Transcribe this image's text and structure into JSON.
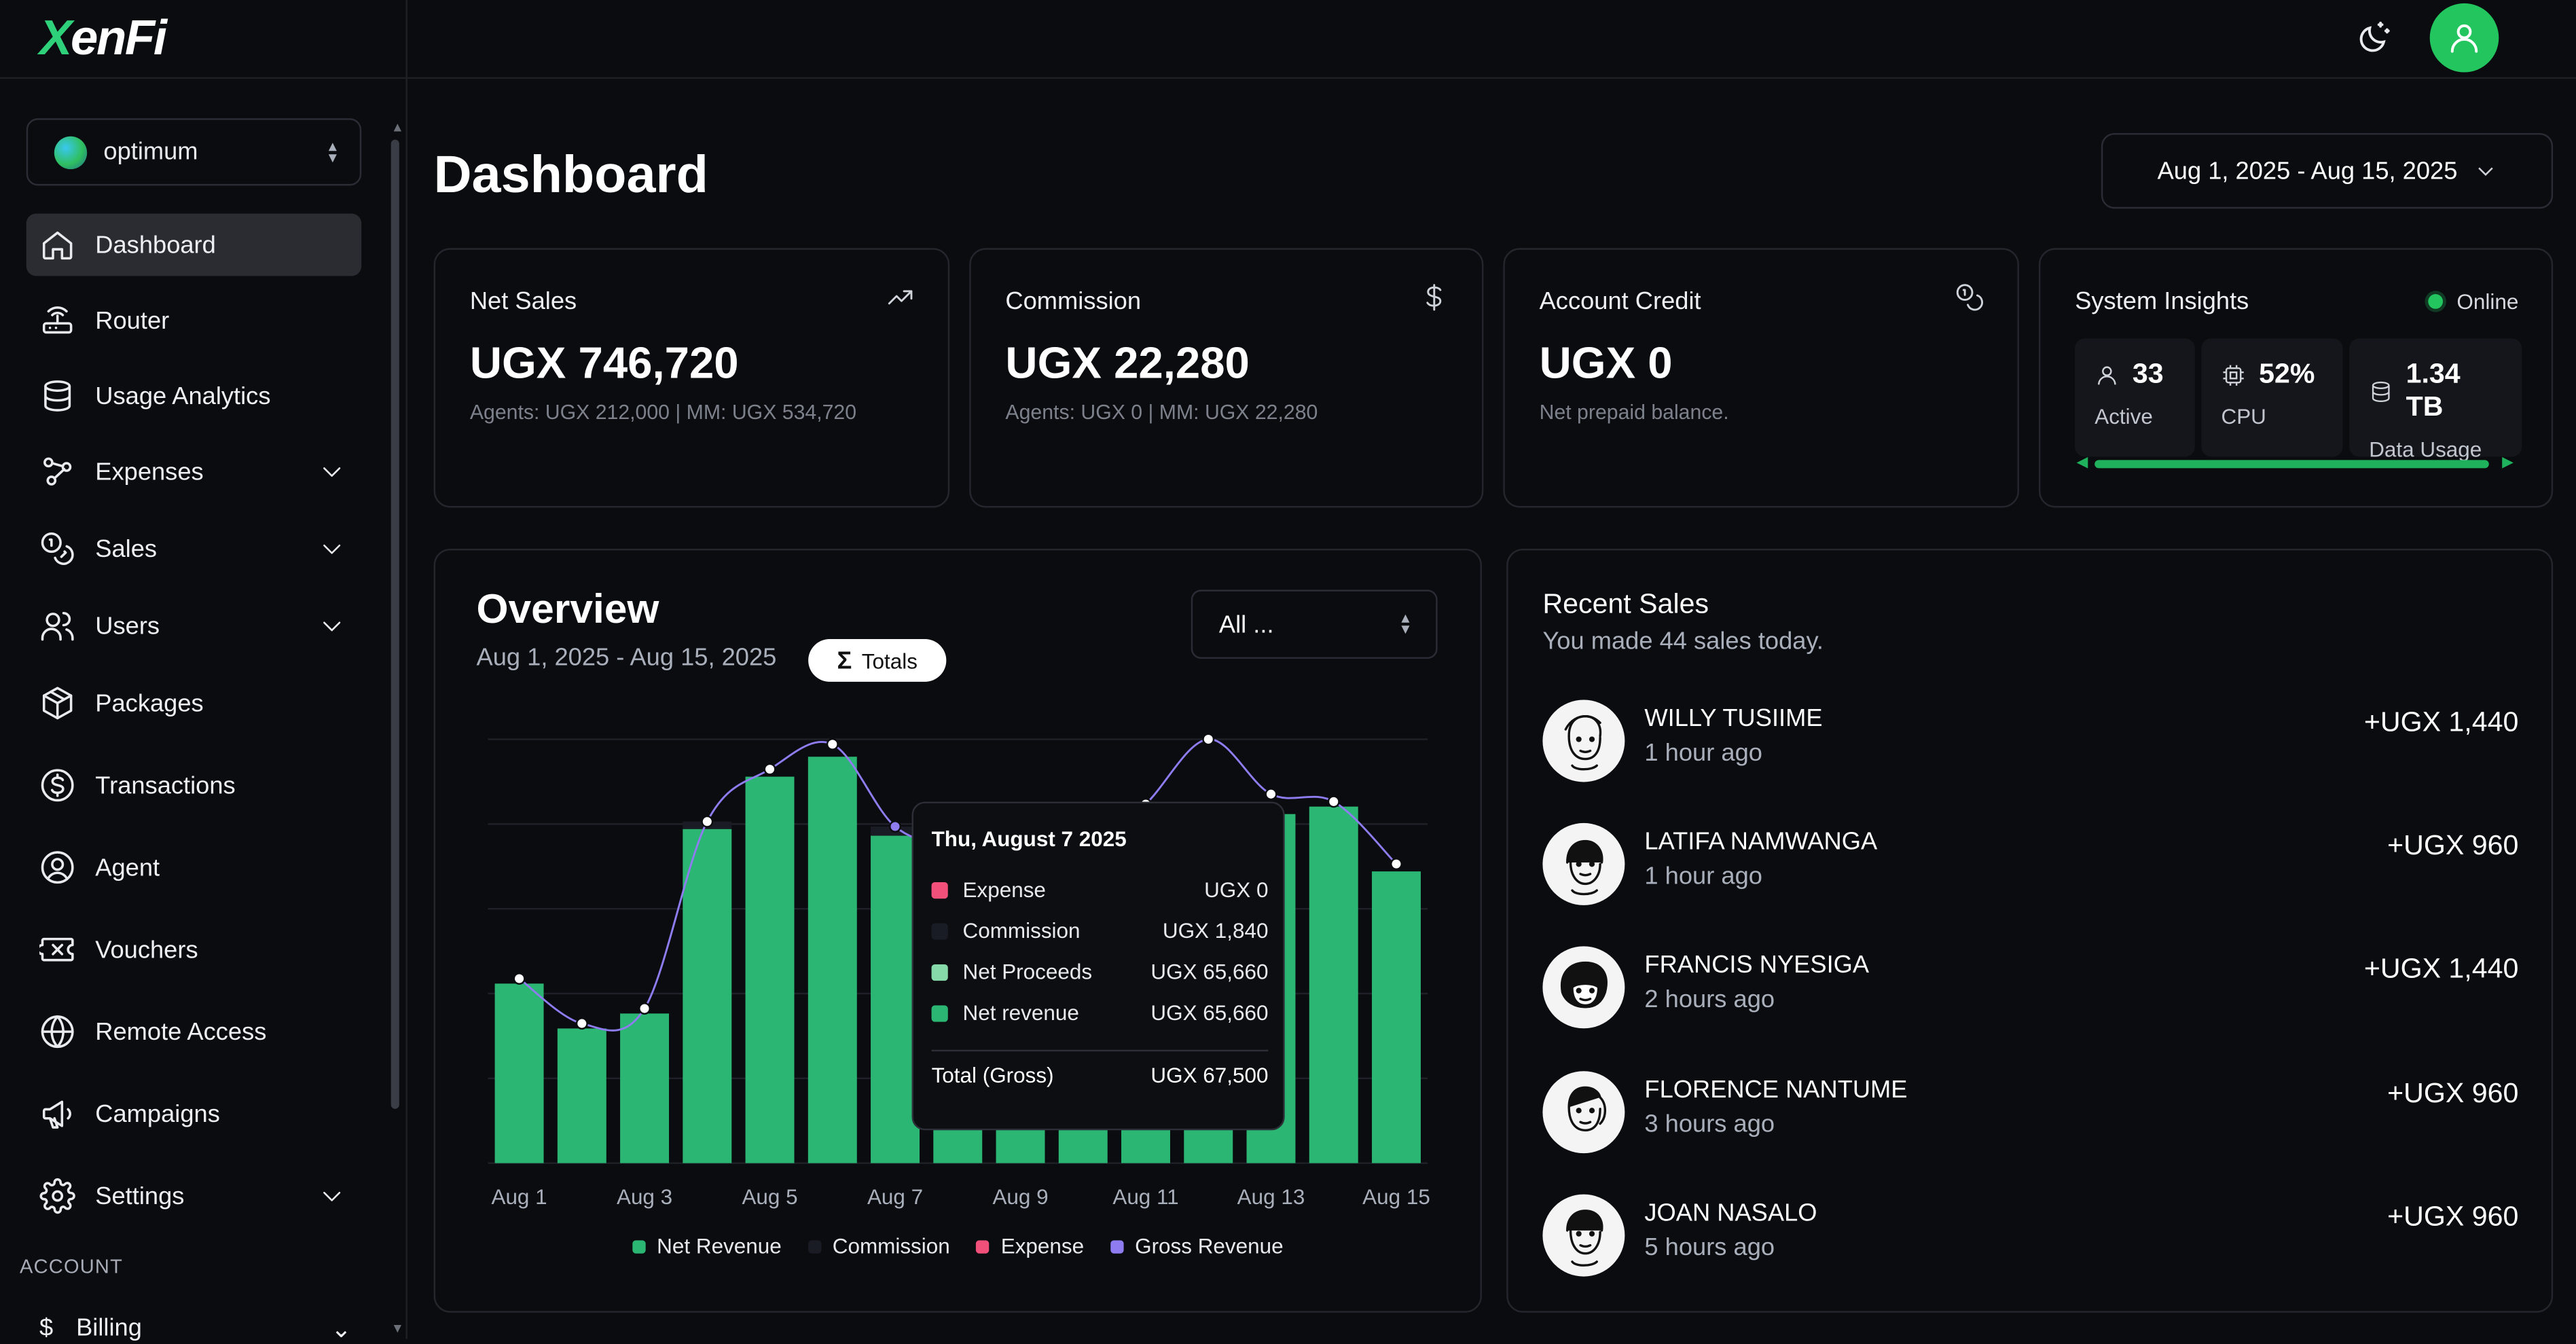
{
  "app": {
    "logo_text": "XenFi"
  },
  "sidebar": {
    "org": "optimum",
    "items": [
      {
        "label": "Dashboard",
        "icon": "home-icon",
        "active": true,
        "has_chevron": false
      },
      {
        "label": "Router",
        "icon": "router-icon",
        "has_chevron": false
      },
      {
        "label": "Usage Analytics",
        "icon": "database-icon",
        "has_chevron": false
      },
      {
        "label": "Expenses",
        "icon": "expenses-icon",
        "has_chevron": true
      },
      {
        "label": "Sales",
        "icon": "coins-icon",
        "has_chevron": true
      },
      {
        "label": "Users",
        "icon": "users-icon",
        "has_chevron": true
      },
      {
        "label": "Packages",
        "icon": "package-icon",
        "has_chevron": false
      },
      {
        "label": "Transactions",
        "icon": "dollar-circle-icon",
        "has_chevron": false
      },
      {
        "label": "Agent",
        "icon": "user-circle-icon",
        "has_chevron": false
      },
      {
        "label": "Vouchers",
        "icon": "ticket-icon",
        "has_chevron": false
      },
      {
        "label": "Remote Access",
        "icon": "globe-icon",
        "has_chevron": false
      },
      {
        "label": "Campaigns",
        "icon": "megaphone-icon",
        "has_chevron": false
      },
      {
        "label": "Settings",
        "icon": "gear-icon",
        "has_chevron": true
      }
    ],
    "account_label": "ACCOUNT",
    "billing_label": "Billing"
  },
  "header": {
    "theme_icon": "moon-sun-icon",
    "avatar_icon": "user-icon"
  },
  "main": {
    "title": "Dashboard",
    "date_range": "Aug 1, 2025 - Aug 15, 2025"
  },
  "stats": [
    {
      "label": "Net Sales",
      "value": "UGX 746,720",
      "sub": "Agents: UGX 212,000 | MM: UGX 534,720",
      "icon": "trending-up-icon"
    },
    {
      "label": "Commission",
      "value": "UGX 22,280",
      "sub": "Agents: UGX 0 | MM: UGX 22,280",
      "icon": "dollar-icon"
    },
    {
      "label": "Account Credit",
      "value": "UGX 0",
      "sub": "Net prepaid balance.",
      "icon": "coins-icon"
    }
  ],
  "insights": {
    "title": "System Insights",
    "status": "Online",
    "active_value": "33",
    "active_label": "Active",
    "cpu_value": "52%",
    "cpu_label": "CPU",
    "data_value": "1.34 TB",
    "data_label": "Data Usage"
  },
  "overview": {
    "title": "Overview",
    "subtitle": "Aug 1, 2025 - Aug 15, 2025",
    "totals_label": "Totals",
    "filter_value": "All ..."
  },
  "chart_data": {
    "type": "bar",
    "categories": [
      "Aug 1",
      "Aug 2",
      "Aug 3",
      "Aug 4",
      "Aug 5",
      "Aug 6",
      "Aug 7",
      "Aug 8",
      "Aug 9",
      "Aug 10",
      "Aug 11",
      "Aug 12",
      "Aug 13",
      "Aug 14",
      "Aug 15"
    ],
    "x_tick_labels": [
      "Aug 1",
      "Aug 3",
      "Aug 5",
      "Aug 7",
      "Aug 9",
      "Aug 11",
      "Aug 13",
      "Aug 15"
    ],
    "ylim": [
      0,
      85000
    ],
    "series": [
      {
        "name": "Net Revenue",
        "kind": "bar",
        "color": "#2bb673",
        "values": [
          36000,
          27000,
          30000,
          67000,
          77500,
          81500,
          65660,
          40000,
          38000,
          38000,
          48000,
          52000,
          70000,
          71500,
          58500
        ]
      },
      {
        "name": "Commission",
        "kind": "bar",
        "color": "#1a1c25",
        "values": [
          0,
          0,
          0,
          1500,
          0,
          0,
          1840,
          0,
          0,
          0,
          0,
          0,
          0,
          0,
          0
        ]
      },
      {
        "name": "Expense",
        "kind": "bar",
        "color": "#f0507a",
        "values": [
          0,
          0,
          0,
          0,
          0,
          0,
          0,
          0,
          0,
          0,
          0,
          0,
          0,
          0,
          0
        ]
      },
      {
        "name": "Gross Revenue",
        "kind": "line",
        "color": "#8e7cf0",
        "values": [
          37000,
          28000,
          31000,
          68500,
          79000,
          84000,
          67500,
          63000,
          58000,
          61000,
          72000,
          85000,
          74000,
          72500,
          60000
        ]
      }
    ],
    "tooltip": {
      "index": 6,
      "title": "Thu, August 7 2025",
      "rows": [
        {
          "name": "Expense",
          "value": "UGX 0",
          "color": "#f0507a"
        },
        {
          "name": "Commission",
          "value": "UGX 1,840",
          "color": "#1a1c25"
        },
        {
          "name": "Net Proceeds",
          "value": "UGX 65,660",
          "color": "#86d9a8"
        },
        {
          "name": "Net revenue",
          "value": "UGX 65,660",
          "color": "#2bb673"
        }
      ],
      "total_label": "Total (Gross)",
      "total_value": "UGX 67,500"
    },
    "legend": [
      {
        "name": "Net Revenue",
        "color": "#2bb673"
      },
      {
        "name": "Commission",
        "color": "#1a1c25"
      },
      {
        "name": "Expense",
        "color": "#f0507a"
      },
      {
        "name": "Gross Revenue",
        "color": "#8e7cf0"
      }
    ],
    "grid": true
  },
  "recent_sales": {
    "title": "Recent Sales",
    "subtitle": "You made 44 sales today.",
    "items": [
      {
        "name": "WILLY TUSIIME",
        "time": "1 hour ago",
        "amount": "+UGX 1,440"
      },
      {
        "name": "LATIFA NAMWANGA",
        "time": "1 hour ago",
        "amount": "+UGX 960"
      },
      {
        "name": "FRANCIS NYESIGA",
        "time": "2 hours ago",
        "amount": "+UGX 1,440"
      },
      {
        "name": "FLORENCE NANTUME",
        "time": "3 hours ago",
        "amount": "+UGX 960"
      },
      {
        "name": "JOAN NASALO",
        "time": "5 hours ago",
        "amount": "+UGX 960"
      }
    ]
  }
}
